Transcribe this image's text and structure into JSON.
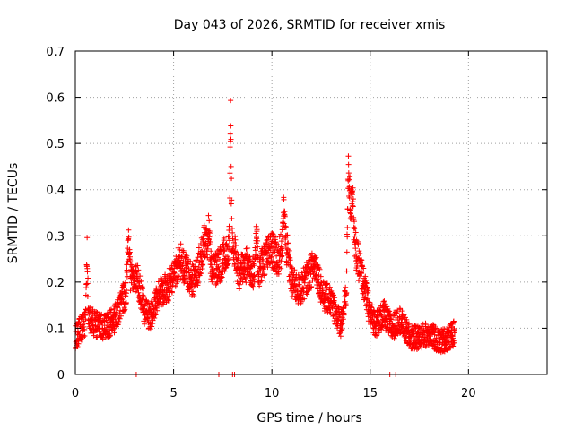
{
  "chart_data": {
    "type": "scatter",
    "title": "Day 043 of 2026, SRMTID for receiver xmis",
    "xlabel": "GPS time / hours",
    "ylabel": "SRMTID / TECUs",
    "xlim": [
      0,
      24
    ],
    "ylim": [
      0,
      0.7
    ],
    "grid": true,
    "marker": "+",
    "color": "#ff0000",
    "x_ticks": [
      {
        "value": 0,
        "label": "0"
      },
      {
        "value": 5,
        "label": "5"
      },
      {
        "value": 10,
        "label": "10"
      },
      {
        "value": 15,
        "label": "15"
      },
      {
        "value": 20,
        "label": "20"
      }
    ],
    "y_ticks": [
      {
        "value": 0,
        "label": "0"
      },
      {
        "value": 0.1,
        "label": "0.1"
      },
      {
        "value": 0.2,
        "label": "0.2"
      },
      {
        "value": 0.3,
        "label": "0.3"
      },
      {
        "value": 0.4,
        "label": "0.4"
      },
      {
        "value": 0.5,
        "label": "0.5"
      },
      {
        "value": 0.6,
        "label": "0.6"
      },
      {
        "value": 0.7,
        "label": "0.7"
      }
    ],
    "series_profile": {
      "name": "SRMTID",
      "samples_per_hour": 120,
      "x_range": [
        0,
        19.3
      ],
      "profile_knots": [
        [
          0.0,
          0.08
        ],
        [
          0.3,
          0.1
        ],
        [
          0.7,
          0.12
        ],
        [
          1.0,
          0.11
        ],
        [
          1.5,
          0.1
        ],
        [
          2.0,
          0.12
        ],
        [
          2.5,
          0.17
        ],
        [
          2.8,
          0.21
        ],
        [
          3.2,
          0.2
        ],
        [
          3.5,
          0.14
        ],
        [
          3.8,
          0.12
        ],
        [
          4.2,
          0.17
        ],
        [
          4.7,
          0.19
        ],
        [
          5.0,
          0.21
        ],
        [
          5.3,
          0.25
        ],
        [
          5.7,
          0.22
        ],
        [
          6.0,
          0.2
        ],
        [
          6.3,
          0.24
        ],
        [
          6.6,
          0.29
        ],
        [
          7.0,
          0.22
        ],
        [
          7.4,
          0.24
        ],
        [
          7.8,
          0.28
        ],
        [
          8.0,
          0.29
        ],
        [
          8.3,
          0.22
        ],
        [
          8.8,
          0.24
        ],
        [
          9.2,
          0.21
        ],
        [
          9.6,
          0.25
        ],
        [
          10.0,
          0.27
        ],
        [
          10.3,
          0.25
        ],
        [
          10.7,
          0.29
        ],
        [
          11.0,
          0.2
        ],
        [
          11.4,
          0.18
        ],
        [
          11.8,
          0.21
        ],
        [
          12.2,
          0.24
        ],
        [
          12.6,
          0.17
        ],
        [
          13.0,
          0.16
        ],
        [
          13.5,
          0.11
        ],
        [
          13.8,
          0.17
        ],
        [
          14.0,
          0.35
        ],
        [
          14.3,
          0.26
        ],
        [
          14.6,
          0.21
        ],
        [
          15.0,
          0.13
        ],
        [
          15.3,
          0.11
        ],
        [
          15.7,
          0.13
        ],
        [
          16.1,
          0.1
        ],
        [
          16.5,
          0.12
        ],
        [
          17.0,
          0.08
        ],
        [
          17.5,
          0.08
        ],
        [
          18.0,
          0.09
        ],
        [
          18.5,
          0.07
        ],
        [
          19.0,
          0.08
        ],
        [
          19.3,
          0.09
        ]
      ],
      "spikes": [
        {
          "x": 0.6,
          "peak": 0.31,
          "width": 0.08
        },
        {
          "x": 2.7,
          "peak": 0.33,
          "width": 0.1
        },
        {
          "x": 7.9,
          "peak": 0.61,
          "width": 0.07
        },
        {
          "x": 13.9,
          "peak": 0.5,
          "width": 0.12
        },
        {
          "x": 14.1,
          "peak": 0.44,
          "width": 0.1
        },
        {
          "x": 10.6,
          "peak": 0.37,
          "width": 0.12
        },
        {
          "x": 6.8,
          "peak": 0.34,
          "width": 0.1
        },
        {
          "x": 9.2,
          "peak": 0.34,
          "width": 0.1
        }
      ],
      "zero_points": [
        3.1,
        7.3,
        8.0,
        8.1,
        16.0,
        16.3
      ]
    }
  }
}
